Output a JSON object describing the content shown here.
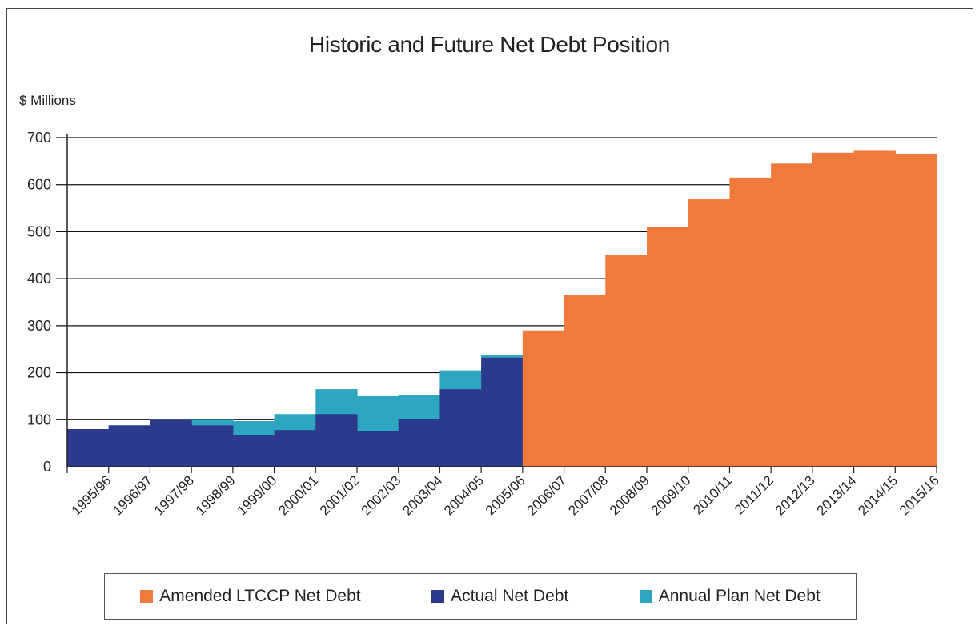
{
  "chart_data": {
    "type": "area",
    "title": "Historic and Future Net Debt Position",
    "ylabel": "$ Millions",
    "xlabel": "",
    "ylim": [
      0,
      700
    ],
    "yticks": [
      0,
      100,
      200,
      300,
      400,
      500,
      600,
      700
    ],
    "grid": true,
    "legend_position": "bottom",
    "categories": [
      "1995/96",
      "1996/97",
      "1997/98",
      "1998/99",
      "1999/00",
      "2000/01",
      "2001/02",
      "2002/03",
      "2003/04",
      "2004/05",
      "2005/06",
      "2006/07",
      "2007/08",
      "2008/09",
      "2009/10",
      "2010/11",
      "2011/12",
      "2012/13",
      "2013/14",
      "2014/15",
      "2015/16"
    ],
    "series": [
      {
        "name": "Amended LTCCP Net Debt",
        "color": "#ef7a3b",
        "values": [
          null,
          null,
          null,
          null,
          null,
          null,
          null,
          null,
          null,
          null,
          null,
          290,
          365,
          450,
          510,
          570,
          615,
          645,
          668,
          672,
          665
        ]
      },
      {
        "name": "Actual Net Debt",
        "color": "#2b3a8c",
        "values": [
          80,
          88,
          100,
          88,
          68,
          78,
          112,
          75,
          102,
          165,
          232,
          null,
          null,
          null,
          null,
          null,
          null,
          null,
          null,
          null,
          null
        ]
      },
      {
        "name": "Annual Plan Net Debt",
        "color": "#2ea6bf",
        "values": [
          80,
          88,
          102,
          100,
          97,
          112,
          165,
          150,
          153,
          205,
          238,
          null,
          null,
          null,
          null,
          null,
          null,
          null,
          null,
          null,
          null
        ]
      }
    ]
  },
  "legend": {
    "items": [
      {
        "label": "Amended LTCCP Net Debt",
        "color": "#ef7a3b"
      },
      {
        "label": "Actual Net Debt",
        "color": "#2b3a8c"
      },
      {
        "label": "Annual Plan Net Debt",
        "color": "#2ea6bf"
      }
    ]
  }
}
